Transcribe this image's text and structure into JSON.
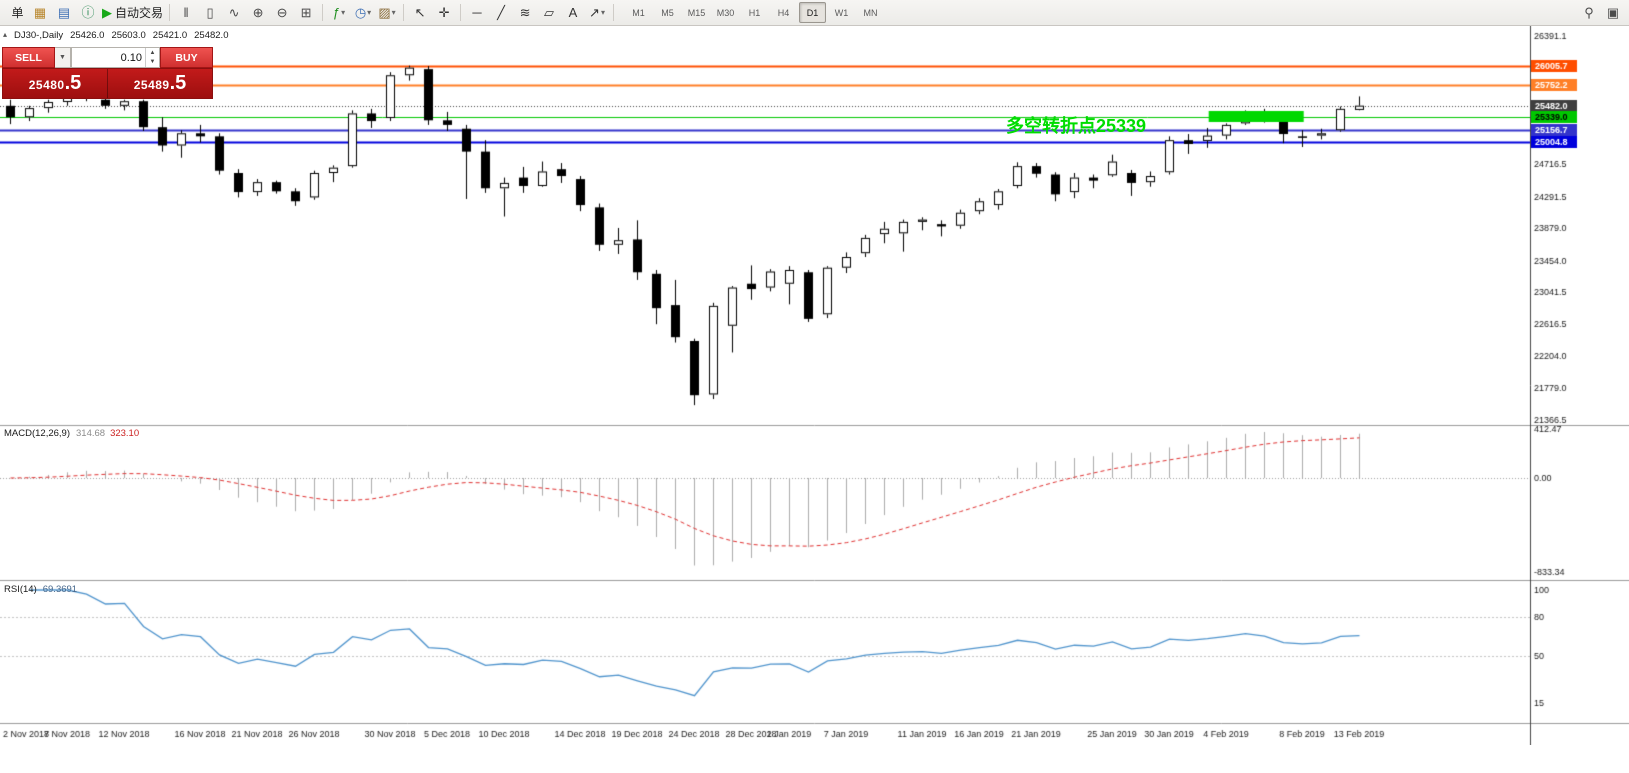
{
  "toolbar": {
    "groups": [
      {
        "sep": false,
        "items": [
          {
            "name": "new-order-button",
            "glyph": "",
            "label": "单",
            "color": "#222222"
          }
        ]
      },
      {
        "sep": false,
        "items": [
          {
            "name": "new-chart-icon",
            "glyph": "▦",
            "color": "#b8862b"
          },
          {
            "name": "profiles-icon",
            "glyph": "▤",
            "color": "#3c6eb4"
          },
          {
            "name": "data-window-icon",
            "glyph": "ⓘ",
            "color": "#2e8b57"
          },
          {
            "name": "auto-trading-button",
            "glyph": "▶",
            "label": "自动交易",
            "color": "#18a818"
          }
        ]
      },
      {
        "sep": true,
        "items": [
          {
            "name": "bar-chart-icon",
            "glyph": "‖",
            "color": "#4c4c4c"
          },
          {
            "name": "candlestick-chart-icon",
            "glyph": "▯",
            "color": "#4c4c4c"
          },
          {
            "name": "line-chart-icon",
            "glyph": "∿",
            "color": "#4c4c4c"
          },
          {
            "name": "zoom-in-icon",
            "glyph": "⊕",
            "color": "#4c4c4c"
          },
          {
            "name": "zoom-out-icon",
            "glyph": "⊖",
            "color": "#4c4c4c"
          },
          {
            "name": "tile-windows-icon",
            "glyph": "⊞",
            "color": "#4c4c4c"
          }
        ]
      },
      {
        "sep": true,
        "items": [
          {
            "name": "indicators-icon",
            "glyph": "ƒ",
            "color": "#1f8f1f",
            "caret": true
          },
          {
            "name": "periods-icon",
            "glyph": "◷",
            "color": "#3c6eb4",
            "caret": true
          },
          {
            "name": "templates-icon",
            "glyph": "▨",
            "color": "#8a6d3b",
            "caret": true
          }
        ]
      },
      {
        "sep": true,
        "items": [
          {
            "name": "cursor-icon",
            "glyph": "↖",
            "color": "#333333"
          },
          {
            "name": "crosshair-icon",
            "glyph": "✛",
            "color": "#333333"
          }
        ]
      },
      {
        "sep": true,
        "items": [
          {
            "name": "horizontal-line-icon",
            "glyph": "─",
            "color": "#333333"
          },
          {
            "name": "trendline-icon",
            "glyph": "╱",
            "color": "#333333"
          },
          {
            "name": "fibonacci-icon",
            "glyph": "≋",
            "color": "#333333"
          },
          {
            "name": "channel-icon",
            "glyph": "▱",
            "color": "#333333"
          },
          {
            "name": "text-label-icon",
            "glyph": "A",
            "color": "#333333"
          },
          {
            "name": "arrows-icon",
            "glyph": "↗",
            "color": "#333333",
            "caret": true
          }
        ]
      }
    ],
    "timeframes": [
      "M1",
      "M5",
      "M15",
      "M30",
      "H1",
      "H4",
      "D1",
      "W1",
      "MN"
    ],
    "active_timeframe": "D1",
    "right_icons": [
      {
        "name": "search-icon",
        "glyph": "⚲",
        "color": "#4c4c4c"
      },
      {
        "name": "layout-icon",
        "glyph": "▣",
        "color": "#4c4c4c"
      }
    ]
  },
  "chart_header": {
    "panel_toggle": "▴",
    "symbol": "DJ30-,Daily",
    "open": "25426.0",
    "high": "25603.0",
    "low": "25421.0",
    "close": "25482.0"
  },
  "trade_panel": {
    "sell_label": "SELL",
    "buy_label": "BUY",
    "volume": "0.10",
    "dropdown_glyph": "▼",
    "spin_up": "▲",
    "spin_down": "▼",
    "sell_price_main": "25480",
    "sell_price_big": ".5",
    "buy_price_main": "25489",
    "buy_price_big": ".5"
  },
  "annotation": {
    "text": "多空转折点25339",
    "color": "#00dd00"
  },
  "levels": [
    {
      "price": 26005.7,
      "label": "26005.7",
      "color": "#ff4e00",
      "width": 2,
      "style": "solid",
      "tag_text": "#ffffff"
    },
    {
      "price": 25752.2,
      "label": "25752.2",
      "color": "#ff7f27",
      "width": 2,
      "style": "solid",
      "tag_text": "#ffffff"
    },
    {
      "price": 25482.0,
      "label": "25482.0",
      "color": "#3f3f3f",
      "width": 1,
      "style": "dotted",
      "tag_text": "#ffffff"
    },
    {
      "price": 25339.0,
      "label": "25339.0",
      "color": "#00c800",
      "width": 1,
      "style": "solid",
      "tag_text": "#000000"
    },
    {
      "price": 25156.7,
      "label": "25156.7",
      "color": "#3333cc",
      "width": 2,
      "style": "solid",
      "tag_text": "#ffffff"
    },
    {
      "price": 25004.8,
      "label": "25004.8",
      "color": "#0000dd",
      "width": 2,
      "style": "solid",
      "tag_text": "#ffffff"
    }
  ],
  "y_axis_labels": [
    "26391.1",
    "24716.5",
    "24291.5",
    "23879.0",
    "23454.0",
    "23041.5",
    "22616.5",
    "22204.0",
    "21779.0",
    "21366.5"
  ],
  "highlight_rect": {
    "from_index": 63.3,
    "to_index": 68.3,
    "price_top": 25412,
    "price_bottom": 25268,
    "color": "#00d800"
  },
  "macd": {
    "title": "MACD(12,26,9)",
    "value1": "314.68",
    "value2": "323.10",
    "axis_labels": [
      "412.47",
      "0.00",
      "-833.34"
    ],
    "fast": 12,
    "slow": 26,
    "signal": 9,
    "histogram_color": "#ababab",
    "signal_color": "#e03030"
  },
  "rsi": {
    "title": "RSI(14)",
    "value": "69.3691",
    "period": 14,
    "axis_labels": [
      "100",
      "80",
      "50",
      "15"
    ],
    "levels": [
      80,
      50
    ],
    "line_color": "#4f94cd"
  },
  "x_axis": {
    "ticks": [
      {
        "label": "2 Nov 2018",
        "index": 0
      },
      {
        "label": "7 Nov 2018",
        "index": 3
      },
      {
        "label": "12 Nov 2018",
        "index": 6
      },
      {
        "label": "16 Nov 2018",
        "index": 10
      },
      {
        "label": "21 Nov 2018",
        "index": 13
      },
      {
        "label": "26 Nov 2018",
        "index": 16
      },
      {
        "label": "30 Nov 2018",
        "index": 20
      },
      {
        "label": "5 Dec 2018",
        "index": 23
      },
      {
        "label": "10 Dec 2018",
        "index": 26
      },
      {
        "label": "14 Dec 2018",
        "index": 30
      },
      {
        "label": "19 Dec 2018",
        "index": 33
      },
      {
        "label": "24 Dec 2018",
        "index": 36
      },
      {
        "label": "28 Dec 2018",
        "index": 39
      },
      {
        "label": "2 Jan 2019",
        "index": 41
      },
      {
        "label": "7 Jan 2019",
        "index": 44
      },
      {
        "label": "11 Jan 2019",
        "index": 48
      },
      {
        "label": "16 Jan 2019",
        "index": 51
      },
      {
        "label": "21 Jan 2019",
        "index": 54
      },
      {
        "label": "25 Jan 2019",
        "index": 58
      },
      {
        "label": "30 Jan 2019",
        "index": 61
      },
      {
        "label": "4 Feb 2019",
        "index": 64
      },
      {
        "label": "8 Feb 2019",
        "index": 68
      },
      {
        "label": "13 Feb 2019",
        "index": 71
      }
    ]
  },
  "chart_data": {
    "type": "candlestick",
    "symbol": "DJ30",
    "timeframe": "Daily",
    "price_range": [
      21300,
      26525
    ],
    "candles": [
      [
        "2018-11-02",
        25480,
        25560,
        25240,
        25330
      ],
      [
        "2018-11-05",
        25330,
        25480,
        25280,
        25450
      ],
      [
        "2018-11-06",
        25450,
        25560,
        25390,
        25530
      ],
      [
        "2018-11-07",
        25530,
        25680,
        25480,
        25650
      ],
      [
        "2018-11-08",
        25650,
        25700,
        25540,
        25600
      ],
      [
        "2018-11-09",
        25560,
        25620,
        25440,
        25480
      ],
      [
        "2018-11-12",
        25480,
        25560,
        25420,
        25540
      ],
      [
        "2018-11-13",
        25540,
        25560,
        25150,
        25200
      ],
      [
        "2018-11-14",
        25200,
        25330,
        24880,
        24960
      ],
      [
        "2018-11-15",
        24960,
        25160,
        24800,
        25120
      ],
      [
        "2018-11-16",
        25120,
        25230,
        25000,
        25080
      ],
      [
        "2018-11-19",
        25080,
        25120,
        24580,
        24630
      ],
      [
        "2018-11-20",
        24600,
        24650,
        24280,
        24350
      ],
      [
        "2018-11-21",
        24350,
        24520,
        24300,
        24480
      ],
      [
        "2018-11-22",
        24480,
        24500,
        24330,
        24360
      ],
      [
        "2018-11-23",
        24360,
        24400,
        24170,
        24230
      ],
      [
        "2018-11-26",
        24280,
        24630,
        24250,
        24600
      ],
      [
        "2018-11-27",
        24600,
        24700,
        24480,
        24670
      ],
      [
        "2018-11-28",
        24690,
        25420,
        24670,
        25380
      ],
      [
        "2018-11-29",
        25380,
        25440,
        25190,
        25280
      ],
      [
        "2018-11-30",
        25320,
        25920,
        25280,
        25880
      ],
      [
        "2018-12-03",
        25880,
        26006,
        25810,
        25980
      ],
      [
        "2018-12-04",
        25960,
        26000,
        25230,
        25290
      ],
      [
        "2018-12-05",
        25290,
        25400,
        25150,
        25230
      ],
      [
        "2018-12-06",
        25180,
        25230,
        24260,
        24880
      ],
      [
        "2018-12-07",
        24880,
        25030,
        24340,
        24400
      ],
      [
        "2018-12-10",
        24400,
        24540,
        24030,
        24470
      ],
      [
        "2018-12-11",
        24540,
        24680,
        24340,
        24430
      ],
      [
        "2018-12-12",
        24430,
        24750,
        24420,
        24620
      ],
      [
        "2018-12-13",
        24650,
        24730,
        24470,
        24560
      ],
      [
        "2018-12-14",
        24520,
        24560,
        24100,
        24180
      ],
      [
        "2018-12-17",
        24150,
        24200,
        23580,
        23660
      ],
      [
        "2018-12-18",
        23660,
        23880,
        23540,
        23720
      ],
      [
        "2018-12-19",
        23730,
        23980,
        23200,
        23300
      ],
      [
        "2018-12-20",
        23280,
        23330,
        22620,
        22830
      ],
      [
        "2018-12-21",
        22870,
        23200,
        22380,
        22450
      ],
      [
        "2018-12-24",
        22400,
        22430,
        21560,
        21690
      ],
      [
        "2018-12-26",
        21700,
        22900,
        21640,
        22860
      ],
      [
        "2018-12-27",
        22600,
        23120,
        22250,
        23100
      ],
      [
        "2018-12-28",
        23150,
        23390,
        22940,
        23080
      ],
      [
        "2018-12-31",
        23100,
        23340,
        23050,
        23310
      ],
      [
        "2019-01-02",
        23150,
        23380,
        22880,
        23330
      ],
      [
        "2019-01-03",
        23300,
        23330,
        22650,
        22690
      ],
      [
        "2019-01-04",
        22750,
        23380,
        22700,
        23360
      ],
      [
        "2019-01-07",
        23360,
        23560,
        23290,
        23500
      ],
      [
        "2019-01-08",
        23550,
        23790,
        23500,
        23750
      ],
      [
        "2019-01-09",
        23800,
        23960,
        23680,
        23870
      ],
      [
        "2019-01-10",
        23810,
        23990,
        23570,
        23960
      ],
      [
        "2019-01-11",
        23960,
        24020,
        23850,
        23990
      ],
      [
        "2019-01-14",
        23930,
        23980,
        23770,
        23900
      ],
      [
        "2019-01-15",
        23910,
        24120,
        23870,
        24080
      ],
      [
        "2019-01-16",
        24100,
        24270,
        24060,
        24230
      ],
      [
        "2019-01-17",
        24180,
        24390,
        24120,
        24360
      ],
      [
        "2019-01-18",
        24430,
        24740,
        24400,
        24690
      ],
      [
        "2019-01-21",
        24690,
        24730,
        24540,
        24590
      ],
      [
        "2019-01-22",
        24580,
        24610,
        24230,
        24320
      ],
      [
        "2019-01-23",
        24350,
        24600,
        24270,
        24540
      ],
      [
        "2019-01-24",
        24540,
        24580,
        24400,
        24500
      ],
      [
        "2019-01-25",
        24570,
        24840,
        24550,
        24750
      ],
      [
        "2019-01-28",
        24600,
        24640,
        24300,
        24470
      ],
      [
        "2019-01-29",
        24480,
        24620,
        24420,
        24560
      ],
      [
        "2019-01-30",
        24610,
        25080,
        24580,
        25030
      ],
      [
        "2019-01-31",
        25030,
        25110,
        24850,
        24980
      ],
      [
        "2019-02-01",
        25020,
        25190,
        24930,
        25090
      ],
      [
        "2019-02-04",
        25090,
        25250,
        25040,
        25230
      ],
      [
        "2019-02-05",
        25250,
        25420,
        25230,
        25400
      ],
      [
        "2019-02-06",
        25410,
        25440,
        25260,
        25320
      ],
      [
        "2019-02-07",
        25280,
        25300,
        24990,
        25110
      ],
      [
        "2019-02-08",
        25080,
        25160,
        24940,
        25070
      ],
      [
        "2019-02-11",
        25090,
        25180,
        25040,
        25120
      ],
      [
        "2019-02-12",
        25160,
        25470,
        25140,
        25440
      ],
      [
        "2019-02-13",
        25426,
        25603,
        25421,
        25482
      ]
    ]
  }
}
